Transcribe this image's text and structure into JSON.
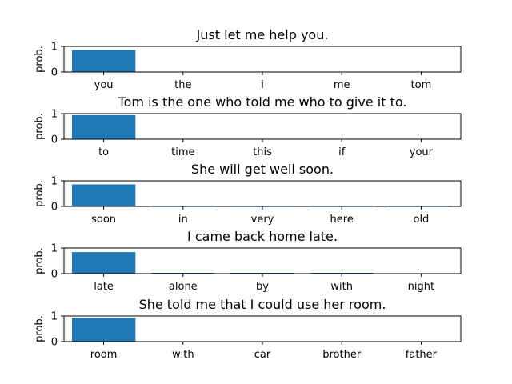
{
  "chart_data": [
    {
      "type": "bar",
      "title": "Just let me help you.",
      "ylabel": "prob.",
      "ylim": [
        0,
        1
      ],
      "yticks": [
        "0",
        "1"
      ],
      "categories": [
        "you",
        "the",
        "i",
        "me",
        "tom"
      ],
      "values": [
        0.86,
        0.0,
        0.0,
        0.0,
        0.0
      ]
    },
    {
      "type": "bar",
      "title": "Tom is the one who told me who to give it to.",
      "ylabel": "prob.",
      "ylim": [
        0,
        1
      ],
      "yticks": [
        "0",
        "1"
      ],
      "categories": [
        "to",
        "time",
        "this",
        "if",
        "your"
      ],
      "values": [
        0.94,
        0.0,
        0.0,
        0.0,
        0.0
      ]
    },
    {
      "type": "bar",
      "title": "She will get well soon.",
      "ylabel": "prob.",
      "ylim": [
        0,
        1
      ],
      "yticks": [
        "0",
        "1"
      ],
      "categories": [
        "soon",
        "in",
        "very",
        "here",
        "old"
      ],
      "values": [
        0.86,
        0.02,
        0.02,
        0.02,
        0.01
      ]
    },
    {
      "type": "bar",
      "title": "I came back home late.",
      "ylabel": "prob.",
      "ylim": [
        0,
        1
      ],
      "yticks": [
        "0",
        "1"
      ],
      "categories": [
        "late",
        "alone",
        "by",
        "with",
        "night"
      ],
      "values": [
        0.84,
        0.02,
        0.02,
        0.02,
        0.0
      ]
    },
    {
      "type": "bar",
      "title": "She told me that I could use her room.",
      "ylabel": "prob.",
      "ylim": [
        0,
        1
      ],
      "yticks": [
        "0",
        "1"
      ],
      "categories": [
        "room",
        "with",
        "car",
        "brother",
        "father"
      ],
      "values": [
        0.93,
        0.0,
        0.0,
        0.0,
        0.0
      ]
    }
  ],
  "style": {
    "bar_color": "#1f77b4",
    "axis_color": "#000000"
  }
}
